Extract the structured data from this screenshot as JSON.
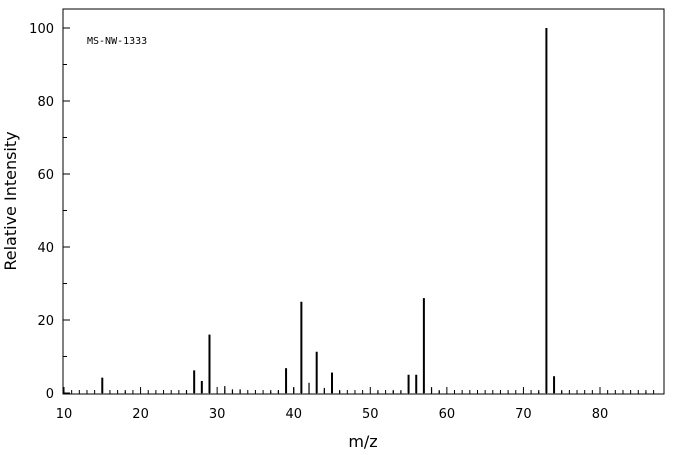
{
  "chart_data": {
    "type": "bar",
    "title": "",
    "annotation": "MS-NW-1333",
    "xlabel": "m/z",
    "ylabel": "Relative Intensity",
    "xlim": [
      10,
      88
    ],
    "ylim": [
      0,
      105
    ],
    "x_major_ticks": [
      10,
      20,
      30,
      40,
      50,
      60,
      70,
      80
    ],
    "x_minor_step": 1,
    "y_major_ticks": [
      0,
      20,
      40,
      60,
      80,
      100
    ],
    "y_minor_step": 10,
    "grid": false,
    "colors": {
      "bars": "#000000",
      "axes": "#000000",
      "background": "#ffffff"
    },
    "x": [
      15,
      18,
      26,
      27,
      28,
      29,
      31,
      32,
      33,
      37,
      38,
      39,
      40,
      41,
      42,
      43,
      44,
      45,
      46,
      51,
      53,
      54,
      55,
      56,
      57,
      58,
      59,
      72,
      73,
      74,
      75,
      86
    ],
    "values": [
      4.2,
      0.4,
      0.8,
      6.2,
      3.3,
      16,
      1.9,
      1.0,
      1.0,
      0.4,
      0.7,
      6.8,
      1.5,
      25,
      2.8,
      11.3,
      1.4,
      5.6,
      0.6,
      0.4,
      0.6,
      0.5,
      5.0,
      5.0,
      26,
      1.6,
      0.5,
      0.4,
      100,
      4.6,
      0.5,
      0.3
    ]
  }
}
